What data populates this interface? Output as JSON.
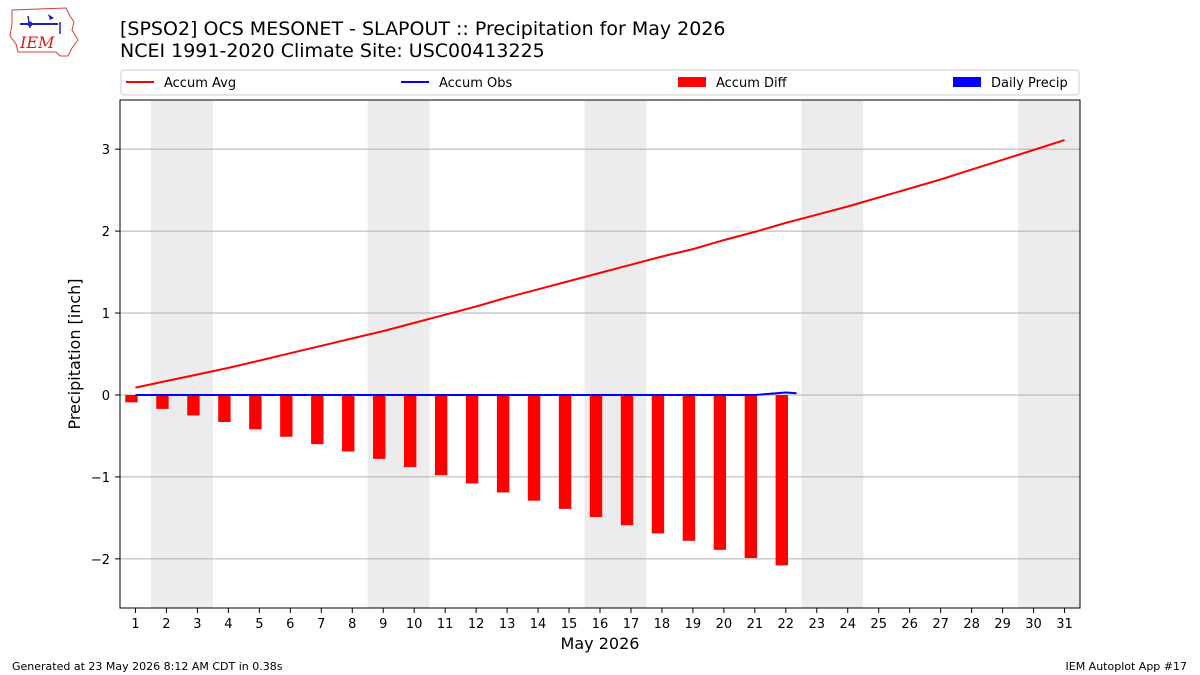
{
  "header": {
    "title": "[SPSO2] OCS MESONET - SLAPOUT :: Precipitation for May 2026",
    "subtitle": "NCEI 1991-2020 Climate Site: USC00413225",
    "logo_text": "IEM"
  },
  "footer": {
    "generated": "Generated at 23 May 2026 8:12 AM CDT in 0.38s",
    "app": "IEM Autoplot App #17"
  },
  "chart_data": {
    "type": "bar",
    "xlabel": "May 2026",
    "ylabel": "Precipitation [inch]",
    "xlim": [
      0.5,
      31.5
    ],
    "ylim": [
      -2.6,
      3.6
    ],
    "yticks": [
      -2,
      -1,
      0,
      1,
      2,
      3
    ],
    "ytick_labels": [
      "−2",
      "−1",
      "0",
      "1",
      "2",
      "3"
    ],
    "categories": [
      "1",
      "2",
      "3",
      "4",
      "5",
      "6",
      "7",
      "8",
      "9",
      "10",
      "11",
      "12",
      "13",
      "14",
      "15",
      "16",
      "17",
      "18",
      "19",
      "20",
      "21",
      "22",
      "23",
      "24",
      "25",
      "26",
      "27",
      "28",
      "29",
      "30",
      "31"
    ],
    "grid": "horizontal",
    "legend_position": "top",
    "weekend_shading": [
      [
        1.5,
        3.5
      ],
      [
        8.5,
        10.5
      ],
      [
        15.5,
        17.5
      ],
      [
        22.5,
        24.5
      ],
      [
        29.5,
        31.5
      ]
    ],
    "series": [
      {
        "name": "Accum Avg",
        "type": "line",
        "color": "#ff0000",
        "x": [
          1,
          2,
          3,
          4,
          5,
          6,
          7,
          8,
          9,
          10,
          11,
          12,
          13,
          14,
          15,
          16,
          17,
          18,
          19,
          20,
          21,
          22,
          23,
          24,
          25,
          26,
          27,
          28,
          29,
          30,
          31
        ],
        "values": [
          0.09,
          0.17,
          0.25,
          0.33,
          0.42,
          0.51,
          0.6,
          0.69,
          0.78,
          0.88,
          0.98,
          1.08,
          1.19,
          1.29,
          1.39,
          1.49,
          1.59,
          1.69,
          1.78,
          1.89,
          1.99,
          2.1,
          2.2,
          2.3,
          2.41,
          2.52,
          2.63,
          2.75,
          2.87,
          2.99,
          3.11
        ]
      },
      {
        "name": "Accum Obs",
        "type": "line",
        "color": "#0000ff",
        "x": [
          1,
          2,
          3,
          4,
          5,
          6,
          7,
          8,
          9,
          10,
          11,
          12,
          13,
          14,
          15,
          16,
          17,
          18,
          19,
          20,
          21,
          22,
          22.35
        ],
        "values": [
          0,
          0,
          0,
          0,
          0,
          0,
          0,
          0,
          0,
          0,
          0,
          0,
          0,
          0,
          0,
          0,
          0,
          0,
          0,
          0,
          0,
          0.03,
          0.02
        ]
      },
      {
        "name": "Accum Diff",
        "type": "bar",
        "color": "#ff0000",
        "x": [
          1,
          2,
          3,
          4,
          5,
          6,
          7,
          8,
          9,
          10,
          11,
          12,
          13,
          14,
          15,
          16,
          17,
          18,
          19,
          20,
          21,
          22
        ],
        "values": [
          -0.09,
          -0.17,
          -0.25,
          -0.33,
          -0.42,
          -0.51,
          -0.6,
          -0.69,
          -0.78,
          -0.88,
          -0.98,
          -1.08,
          -1.19,
          -1.29,
          -1.39,
          -1.49,
          -1.59,
          -1.69,
          -1.78,
          -1.89,
          -1.99,
          -2.08
        ]
      },
      {
        "name": "Daily Precip",
        "type": "bar",
        "color": "#0000ff",
        "x": [],
        "values": []
      }
    ]
  }
}
